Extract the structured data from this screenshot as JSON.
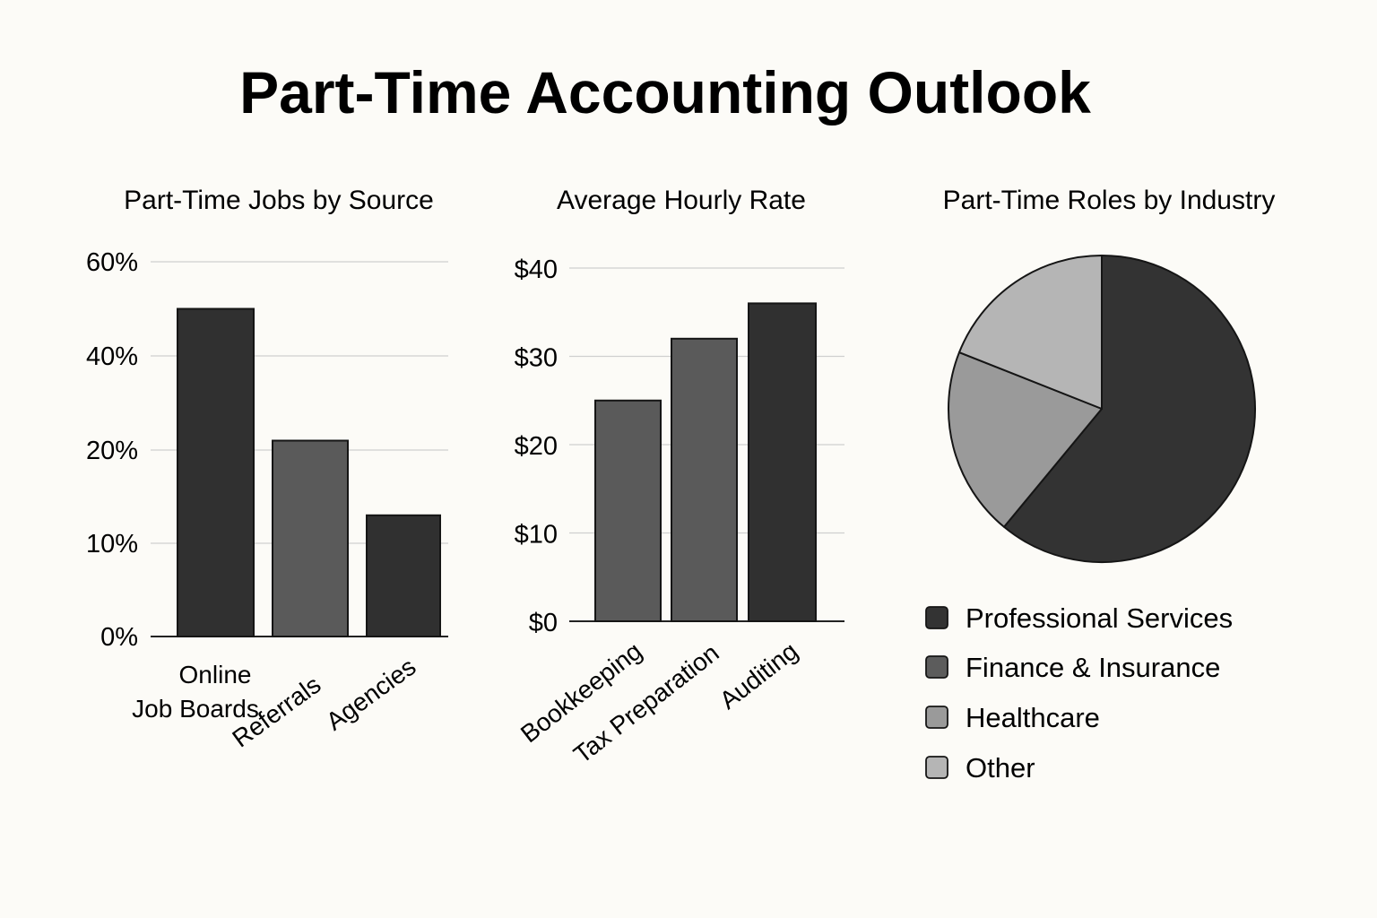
{
  "title": "Part-Time Accounting Outlook",
  "chart_data": [
    {
      "type": "bar",
      "title": "Part-Time Jobs by Source",
      "categories": [
        "Online Job Boards",
        "Referrals",
        "Agencies"
      ],
      "values": [
        50,
        22,
        13
      ],
      "colors": [
        "#303030",
        "#5a5a5a",
        "#303030"
      ],
      "y_ticks": [
        "0%",
        "10%",
        "20%",
        "40%",
        "60%"
      ],
      "grid": true
    },
    {
      "type": "bar",
      "title": "Average Hourly Rate",
      "categories": [
        "Bookkeeping",
        "Tax Preparation",
        "Auditing"
      ],
      "values": [
        25,
        32,
        36
      ],
      "colors": [
        "#5a5a5a",
        "#5a5a5a",
        "#303030"
      ],
      "y_ticks": [
        "$0",
        "$10",
        "$20",
        "$30",
        "$40"
      ],
      "ylim": [
        0,
        40
      ],
      "grid": true
    },
    {
      "type": "pie",
      "title": "Part-Time Roles by Industry",
      "labels": [
        "Professional Services",
        "Finance & Insurance",
        "Healthcare",
        "Other"
      ],
      "values": [
        61,
        0,
        20,
        19
      ],
      "colors": [
        "#333333",
        "#5c5c5c",
        "#9a9a9a",
        "#b5b5b5"
      ],
      "legend": "bottom"
    }
  ]
}
